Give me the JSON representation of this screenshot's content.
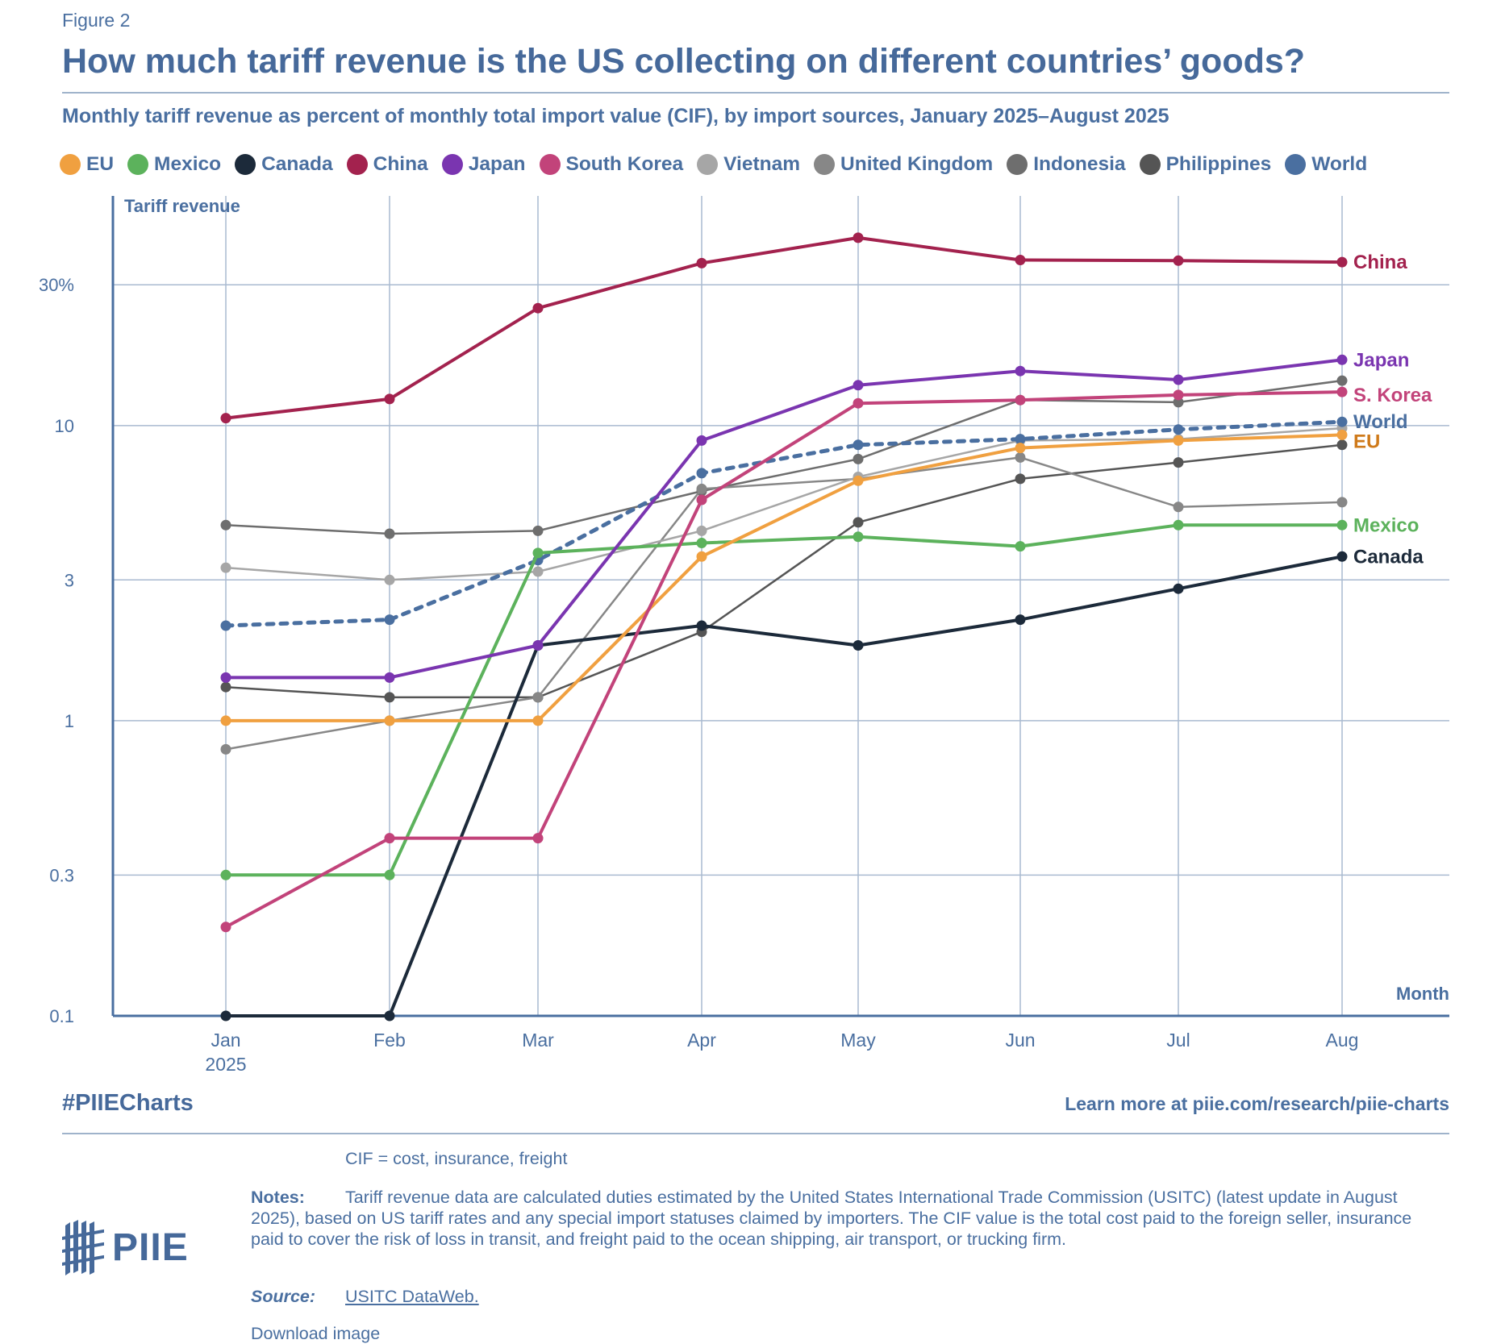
{
  "figure_label": "Figure 2",
  "title": "How much tariff revenue is the US collecting on different countries’ goods?",
  "subtitle": "Monthly tariff revenue as percent of monthly total import value (CIF), by import sources, January 2025–August 2025",
  "legend": [
    {
      "label": "EU",
      "color": "#f0a040"
    },
    {
      "label": "Mexico",
      "color": "#5cb25c"
    },
    {
      "label": "Canada",
      "color": "#1c2a3a"
    },
    {
      "label": "China",
      "color": "#a3224e"
    },
    {
      "label": "Japan",
      "color": "#7a35b0"
    },
    {
      "label": "South Korea",
      "color": "#c2437a"
    },
    {
      "label": "Vietnam",
      "color": "#a6a6a6"
    },
    {
      "label": "United Kingdom",
      "color": "#878787"
    },
    {
      "label": "Indonesia",
      "color": "#6e6e6e"
    },
    {
      "label": "Philippines",
      "color": "#555555"
    },
    {
      "label": "World",
      "color": "#4a6fa0"
    }
  ],
  "chart_data": {
    "type": "line",
    "title": "How much tariff revenue is the US collecting on different countries’ goods?",
    "ylabel": "Tariff revenue",
    "xlabel": "Month",
    "yscale": "log",
    "ylim": [
      0.1,
      60
    ],
    "y_ticks": [
      0.1,
      0.3,
      1,
      3,
      10,
      30
    ],
    "y_tick_labels": [
      "0.1",
      "0.3",
      "1",
      "3",
      "10",
      "30%"
    ],
    "categories": [
      "Jan",
      "Feb",
      "Mar",
      "Apr",
      "May",
      "Jun",
      "Jul",
      "Aug"
    ],
    "x_tick_sublabels": [
      "2025",
      "",
      "",
      "",
      "",
      "",
      "",
      ""
    ],
    "series": [
      {
        "name": "Philippines",
        "color": "#555555",
        "values": [
          1.3,
          1.2,
          1.2,
          2.0,
          4.7,
          6.6,
          7.5,
          8.6
        ],
        "dashed": false
      },
      {
        "name": "Indonesia",
        "color": "#6e6e6e",
        "values": [
          4.6,
          4.3,
          4.4,
          6.0,
          7.7,
          12.2,
          12.0,
          14.2
        ],
        "dashed": false
      },
      {
        "name": "United Kingdom",
        "color": "#878787",
        "values": [
          0.8,
          1.0,
          1.2,
          6.1,
          6.6,
          7.8,
          5.3,
          5.5
        ],
        "dashed": false
      },
      {
        "name": "Vietnam",
        "color": "#a6a6a6",
        "values": [
          3.3,
          3.0,
          3.2,
          4.4,
          6.7,
          8.9,
          9.0,
          9.8
        ],
        "dashed": false
      },
      {
        "name": "World",
        "color": "#4a6fa0",
        "values": [
          2.1,
          2.2,
          3.5,
          6.9,
          8.6,
          9.0,
          9.7,
          10.3
        ],
        "dashed": true
      },
      {
        "name": "Canada",
        "color": "#1c2a3a",
        "values": [
          0.1,
          0.1,
          1.8,
          2.1,
          1.8,
          2.2,
          2.8,
          3.6
        ],
        "dashed": false
      },
      {
        "name": "Mexico",
        "color": "#5cb25c",
        "values": [
          0.3,
          0.3,
          3.7,
          4.0,
          4.2,
          3.9,
          4.6,
          4.6
        ],
        "dashed": false
      },
      {
        "name": "EU",
        "color": "#f0a040",
        "values": [
          1.0,
          1.0,
          1.0,
          3.6,
          6.5,
          8.4,
          8.9,
          9.3
        ],
        "dashed": false
      },
      {
        "name": "South Korea",
        "color": "#c2437a",
        "values": [
          0.2,
          0.4,
          0.4,
          5.6,
          11.9,
          12.2,
          12.7,
          13.0
        ],
        "dashed": false
      },
      {
        "name": "Japan",
        "color": "#7a35b0",
        "values": [
          1.4,
          1.4,
          1.8,
          8.9,
          13.7,
          15.3,
          14.3,
          16.7
        ],
        "dashed": false
      },
      {
        "name": "China",
        "color": "#a3224e",
        "values": [
          10.6,
          12.3,
          25.0,
          35.5,
          43.3,
          36.4,
          36.2,
          35.8
        ],
        "dashed": false
      }
    ],
    "end_labels": [
      {
        "series": "China",
        "text": "China",
        "color": "#a3224e"
      },
      {
        "series": "Japan",
        "text": "Japan",
        "color": "#7a35b0"
      },
      {
        "series": "South Korea",
        "text": "S. Korea",
        "color": "#c2437a"
      },
      {
        "series": "World",
        "text": "World",
        "color": "#4a6fa0"
      },
      {
        "series": "EU",
        "text": "EU",
        "color": "#cf7a1a"
      },
      {
        "series": "Mexico",
        "text": "Mexico",
        "color": "#5cb25c"
      },
      {
        "series": "Canada",
        "text": "Canada",
        "color": "#1c2a3a"
      }
    ]
  },
  "footer": {
    "hashtag": "#PIIECharts",
    "learn_more": "Learn more at piie.com/research/piie-charts"
  },
  "notes": {
    "cif_definition": "CIF = cost, insurance, freight",
    "notes_label": "Notes:",
    "notes_text": "Tariff revenue data are calculated duties estimated by the United States International Trade Commission (USITC) (latest update in August 2025), based on US tariff rates and any special import statuses claimed by importers. The CIF value is the total cost paid to the foreign seller, insurance paid to cover the risk of loss in transit, and freight paid to the ocean shipping, air transport, or trucking firm.",
    "source_label": "Source:",
    "source_text": "USITC DataWeb.",
    "download": "Download image"
  },
  "logo": {
    "text": "PIIE",
    "icon": "piie-logo-icon"
  }
}
